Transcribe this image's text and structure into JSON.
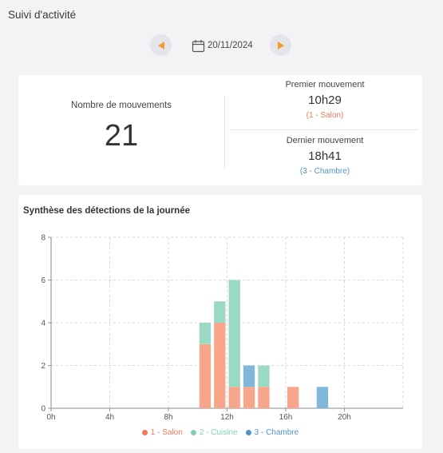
{
  "header": {
    "title": "Suivi d'activité"
  },
  "date_nav": {
    "date": "20/11/2024"
  },
  "summary": {
    "count_label": "Nombre de mouvements",
    "count_value": "21",
    "first": {
      "label": "Premier mouvement",
      "time": "10h29",
      "room": "(1 - Salon)"
    },
    "last": {
      "label": "Dernier mouvement",
      "time": "18h41",
      "room": "(3 - Chambre)"
    }
  },
  "colors": {
    "salon": "#f7a58b",
    "cuisine": "#9ad9c3",
    "chambre": "#7fb6d9",
    "nav_arrow": "#f39a2e",
    "salon_dot": "#f07a55",
    "cuisine_dot": "#7fd0b3",
    "chambre_dot": "#4f93c9"
  },
  "chart_data": {
    "type": "bar",
    "stacked": true,
    "title": "Synthèse des détections de la journée",
    "x": [
      10,
      11,
      12,
      13,
      14,
      16,
      18
    ],
    "series": [
      {
        "name": "1 - Salon",
        "values": [
          3,
          4,
          1,
          1,
          1,
          1,
          0
        ]
      },
      {
        "name": "2 - Cuisine",
        "values": [
          1,
          1,
          5,
          0,
          1,
          0,
          0
        ]
      },
      {
        "name": "3 - Chambre",
        "values": [
          0,
          0,
          0,
          1,
          0,
          0,
          1
        ]
      }
    ],
    "xlim": [
      0,
      24
    ],
    "ylim": [
      0,
      8
    ],
    "xticks": [
      "0h",
      "4h",
      "8h",
      "12h",
      "16h",
      "20h"
    ],
    "yticks": [
      "0",
      "2",
      "4",
      "6",
      "8"
    ],
    "grid": true,
    "legend_position": "bottom"
  }
}
